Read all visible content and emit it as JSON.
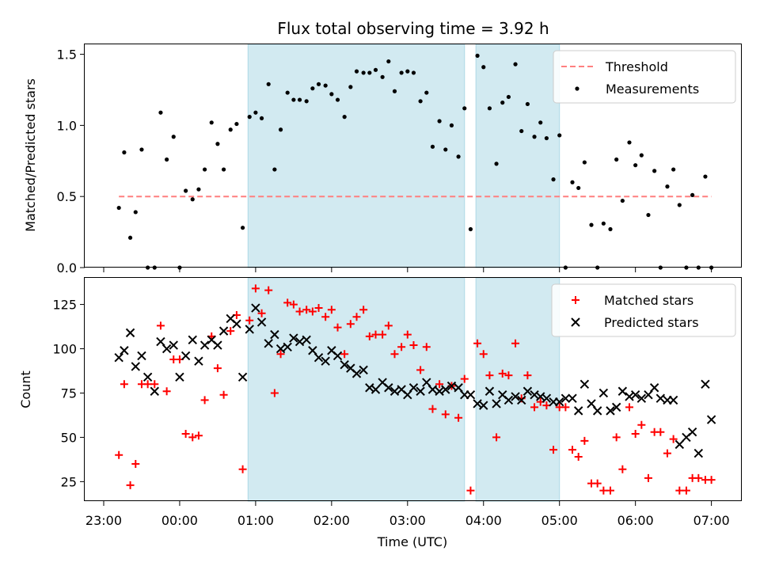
{
  "chart_data": {
    "type": "scatter",
    "title": "Flux total observing time = 3.92 h",
    "xlabel": "Time (UTC)",
    "xlim": [
      22.75,
      31.4
    ],
    "xticks": [
      23,
      24,
      25,
      26,
      27,
      28,
      29,
      30,
      31
    ],
    "xtick_labels": [
      "23:00",
      "00:00",
      "01:00",
      "02:00",
      "03:00",
      "04:00",
      "05:00",
      "06:00",
      "07:00"
    ],
    "shaded_intervals": [
      [
        24.9,
        27.75
      ],
      [
        27.9,
        29.0
      ]
    ],
    "shade_color": "#add8e6",
    "panels": [
      {
        "ylabel": "Matched/Predicted stars",
        "ylim": [
          0,
          1.57
        ],
        "yticks": [
          0.0,
          0.5,
          1.0,
          1.5
        ],
        "ytick_labels": [
          "0.0",
          "0.5",
          "1.0",
          "1.5"
        ],
        "legend": {
          "position": "top-right",
          "entries": [
            "Threshold",
            "Measurements"
          ]
        },
        "threshold": {
          "name": "Threshold",
          "value": 0.5,
          "x_range": [
            23.2,
            31.0
          ],
          "color": "#ff7f7f",
          "style": "dashed"
        },
        "series": [
          {
            "name": "Measurements",
            "marker": "dot",
            "color": "#000000",
            "x": [
              23.2,
              23.27,
              23.35,
              23.42,
              23.5,
              23.58,
              23.67,
              23.75,
              23.83,
              23.92,
              24.0,
              24.08,
              24.17,
              24.25,
              24.33,
              24.42,
              24.5,
              24.58,
              24.67,
              24.75,
              24.83,
              24.92,
              25.0,
              25.08,
              25.17,
              25.25,
              25.33,
              25.42,
              25.5,
              25.58,
              25.67,
              25.75,
              25.83,
              25.92,
              26.0,
              26.08,
              26.17,
              26.25,
              26.33,
              26.42,
              26.5,
              26.58,
              26.67,
              26.75,
              26.83,
              26.92,
              27.0,
              27.08,
              27.17,
              27.25,
              27.33,
              27.42,
              27.5,
              27.58,
              27.67,
              27.75,
              27.83,
              27.92,
              28.0,
              28.08,
              28.17,
              28.25,
              28.33,
              28.42,
              28.5,
              28.58,
              28.67,
              28.75,
              28.83,
              28.92,
              29.0,
              29.08,
              29.17,
              29.25,
              29.33,
              29.42,
              29.5,
              29.58,
              29.67,
              29.75,
              29.83,
              29.92,
              30.0,
              30.08,
              30.17,
              30.25,
              30.33,
              30.42,
              30.5,
              30.58,
              30.67,
              30.75,
              30.83,
              30.92,
              31.0
            ],
            "y": [
              0.42,
              0.81,
              0.21,
              0.39,
              0.83,
              0.0,
              0.0,
              1.09,
              0.76,
              0.92,
              0.0,
              0.54,
              0.48,
              0.55,
              0.69,
              1.02,
              0.87,
              0.69,
              0.97,
              1.01,
              0.28,
              1.06,
              1.09,
              1.05,
              1.29,
              0.69,
              0.97,
              1.23,
              1.18,
              1.18,
              1.17,
              1.26,
              1.29,
              1.28,
              1.22,
              1.18,
              1.06,
              1.27,
              1.38,
              1.37,
              1.37,
              1.39,
              1.34,
              1.45,
              1.24,
              1.37,
              1.38,
              1.37,
              1.17,
              1.23,
              0.85,
              1.03,
              0.83,
              1.0,
              0.78,
              1.12,
              0.27,
              1.49,
              1.41,
              1.12,
              0.73,
              1.16,
              1.2,
              1.43,
              0.96,
              1.15,
              0.92,
              1.02,
              0.91,
              0.62,
              0.93,
              0.0,
              0.6,
              0.56,
              0.74,
              0.3,
              0.0,
              0.31,
              0.27,
              0.76,
              0.47,
              0.88,
              0.72,
              0.79,
              0.37,
              0.68,
              0.0,
              0.57,
              0.69,
              0.44,
              0.0,
              0.51,
              0.0,
              0.64,
              0.0
            ]
          }
        ]
      },
      {
        "ylabel": "Count",
        "ylim": [
          14,
          140
        ],
        "yticks": [
          25,
          50,
          75,
          100,
          125
        ],
        "ytick_labels": [
          "25",
          "50",
          "75",
          "100",
          "125"
        ],
        "legend": {
          "position": "top-right",
          "entries": [
            "Matched stars",
            "Predicted stars"
          ]
        },
        "series": [
          {
            "name": "Matched stars",
            "marker": "plus",
            "color": "#ff0000",
            "x": [
              23.2,
              23.27,
              23.35,
              23.42,
              23.5,
              23.58,
              23.67,
              23.75,
              23.83,
              23.92,
              24.0,
              24.08,
              24.17,
              24.25,
              24.33,
              24.42,
              24.5,
              24.58,
              24.67,
              24.75,
              24.83,
              24.92,
              25.0,
              25.08,
              25.17,
              25.25,
              25.33,
              25.42,
              25.5,
              25.58,
              25.67,
              25.75,
              25.83,
              25.92,
              26.0,
              26.08,
              26.17,
              26.25,
              26.33,
              26.42,
              26.5,
              26.58,
              26.67,
              26.75,
              26.83,
              26.92,
              27.0,
              27.08,
              27.17,
              27.25,
              27.33,
              27.42,
              27.5,
              27.58,
              27.67,
              27.75,
              27.83,
              27.92,
              28.0,
              28.08,
              28.17,
              28.25,
              28.33,
              28.42,
              28.5,
              28.58,
              28.67,
              28.75,
              28.83,
              28.92,
              29.0,
              29.08,
              29.17,
              29.25,
              29.33,
              29.42,
              29.5,
              29.58,
              29.67,
              29.75,
              29.83,
              29.92,
              30.0,
              30.08,
              30.17,
              30.25,
              30.33,
              30.42,
              30.5,
              30.58,
              30.67,
              30.75,
              30.83,
              30.92,
              31.0
            ],
            "y": [
              40,
              80,
              23,
              35,
              80,
              80,
              80,
              113,
              76,
              94,
              94,
              52,
              50,
              51,
              71,
              107,
              89,
              74,
              110,
              119,
              32,
              116,
              134,
              120,
              133,
              75,
              97,
              126,
              125,
              121,
              122,
              121,
              123,
              118,
              122,
              112,
              97,
              114,
              118,
              122,
              107,
              108,
              108,
              113,
              97,
              101,
              108,
              102,
              88,
              101,
              66,
              80,
              63,
              79,
              61,
              83,
              20,
              103,
              97,
              85,
              50,
              86,
              85,
              103,
              72,
              85,
              67,
              70,
              68,
              43,
              67,
              67,
              43,
              39,
              48,
              24,
              24,
              20,
              20,
              50,
              32,
              67,
              52,
              57,
              27,
              53,
              53,
              41,
              49,
              20,
              20,
              27,
              27,
              26,
              26
            ]
          },
          {
            "name": "Predicted stars",
            "marker": "x",
            "color": "#000000",
            "x": [
              23.2,
              23.27,
              23.35,
              23.42,
              23.5,
              23.58,
              23.67,
              23.75,
              23.83,
              23.92,
              24.0,
              24.08,
              24.17,
              24.25,
              24.33,
              24.42,
              24.5,
              24.58,
              24.67,
              24.75,
              24.83,
              24.92,
              25.0,
              25.08,
              25.17,
              25.25,
              25.33,
              25.42,
              25.5,
              25.58,
              25.67,
              25.75,
              25.83,
              25.92,
              26.0,
              26.08,
              26.17,
              26.25,
              26.33,
              26.42,
              26.5,
              26.58,
              26.67,
              26.75,
              26.83,
              26.92,
              27.0,
              27.08,
              27.17,
              27.25,
              27.33,
              27.42,
              27.5,
              27.58,
              27.67,
              27.75,
              27.83,
              27.92,
              28.0,
              28.08,
              28.17,
              28.25,
              28.33,
              28.42,
              28.5,
              28.58,
              28.67,
              28.75,
              28.83,
              28.92,
              29.0,
              29.08,
              29.17,
              29.25,
              29.33,
              29.42,
              29.5,
              29.58,
              29.67,
              29.75,
              29.83,
              29.92,
              30.0,
              30.08,
              30.17,
              30.25,
              30.33,
              30.42,
              30.5,
              30.58,
              30.67,
              30.75,
              30.83,
              30.92,
              31.0
            ],
            "y": [
              95,
              99,
              109,
              90,
              96,
              84,
              76,
              104,
              100,
              102,
              84,
              96,
              105,
              93,
              102,
              105,
              102,
              110,
              117,
              114,
              84,
              111,
              123,
              115,
              103,
              108,
              100,
              101,
              106,
              104,
              105,
              99,
              95,
              93,
              99,
              96,
              91,
              89,
              86,
              88,
              78,
              77,
              81,
              78,
              76,
              77,
              74,
              78,
              76,
              81,
              77,
              76,
              77,
              79,
              78,
              74,
              74,
              69,
              68,
              76,
              69,
              74,
              71,
              73,
              71,
              76,
              74,
              73,
              72,
              70,
              70,
              72,
              72,
              65,
              80,
              69,
              65,
              75,
              65,
              67,
              76,
              73,
              74,
              72,
              74,
              78,
              72,
              71,
              71,
              46,
              50,
              53,
              41,
              80,
              60
            ]
          }
        ]
      }
    ]
  }
}
